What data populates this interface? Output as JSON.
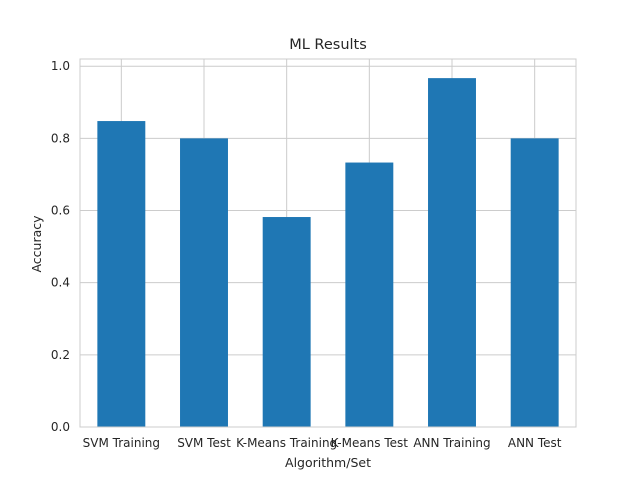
{
  "chart_data": {
    "type": "bar",
    "title": "ML Results",
    "xlabel": "Algorithm/Set",
    "ylabel": "Accuracy",
    "categories": [
      "SVM Training",
      "SVM Test",
      "K-Means Training",
      "K-Means Test",
      "ANN Training",
      "ANN Test"
    ],
    "values": [
      0.848,
      0.8,
      0.582,
      0.733,
      0.967,
      0.8
    ],
    "ylim": [
      0,
      1.02
    ],
    "yticks": [
      0.0,
      0.2,
      0.4,
      0.6,
      0.8,
      1.0
    ],
    "ytick_labels": [
      "0.0",
      "0.2",
      "0.4",
      "0.6",
      "0.8",
      "1.0"
    ],
    "grid": true,
    "bar_color": "#1f77b4",
    "grid_color": "#cccccc"
  }
}
